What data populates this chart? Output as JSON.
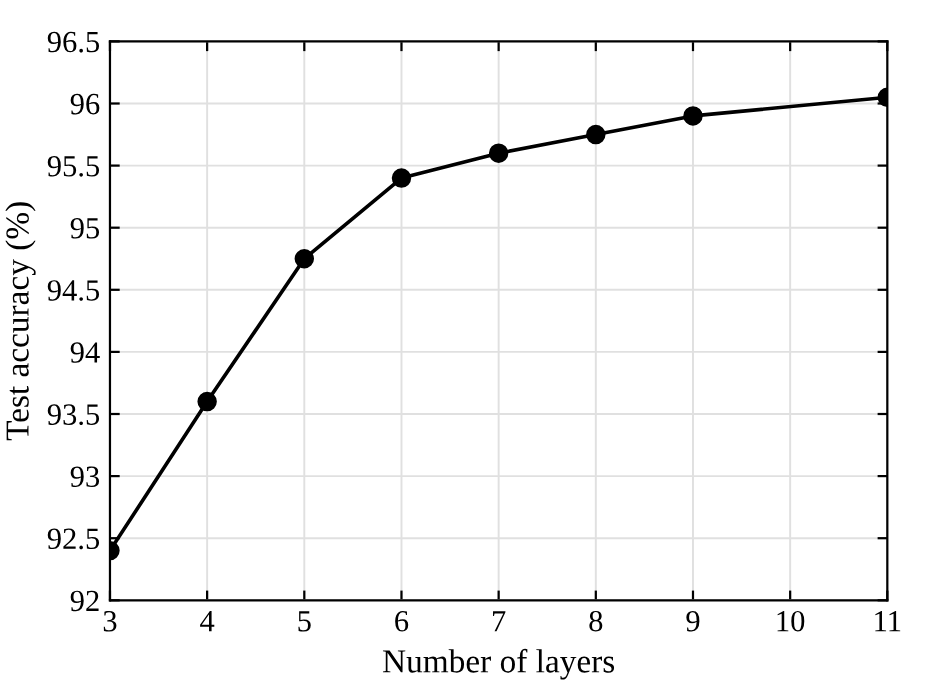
{
  "chart_data": {
    "type": "line",
    "xlabel": "Number of layers",
    "ylabel": "Test accuracy (%)",
    "x": [
      3,
      4,
      5,
      6,
      7,
      8,
      9,
      11
    ],
    "series": [
      {
        "color": "#000000",
        "values": [
          92.4,
          93.6,
          94.75,
          95.4,
          95.6,
          95.75,
          95.9,
          96.05
        ]
      }
    ],
    "xlim": [
      3,
      11
    ],
    "xticks": [
      3,
      4,
      5,
      6,
      7,
      8,
      9,
      10,
      11
    ],
    "ylim": [
      92,
      96.5
    ],
    "yticks": [
      92,
      92.5,
      93,
      93.5,
      94,
      94.5,
      95,
      95.5,
      96,
      96.5
    ],
    "grid": true,
    "marker": "circle",
    "line_style": "solid"
  }
}
